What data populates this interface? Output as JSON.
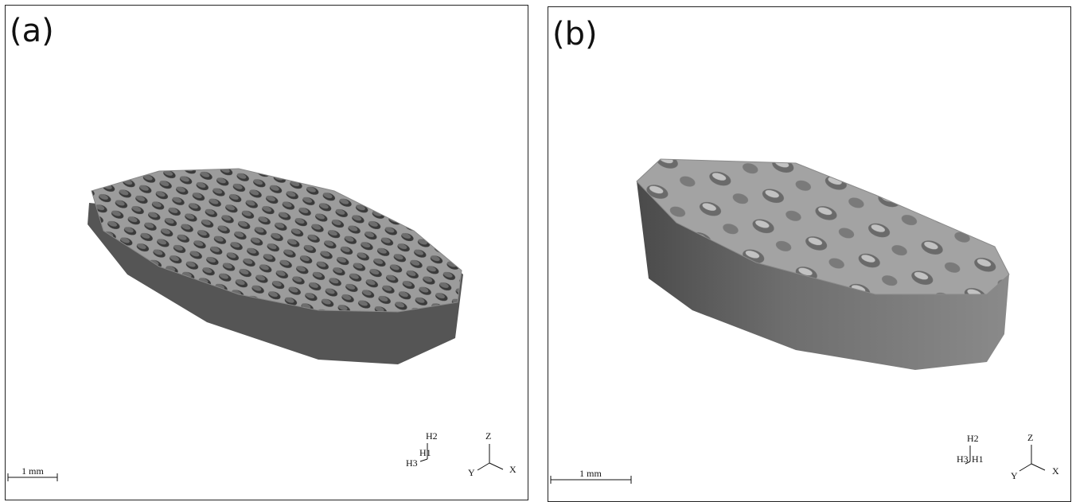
{
  "panels": [
    {
      "label": "(a)",
      "scale_bar": "1 mm",
      "triad": {
        "h1": "H1",
        "h2": "H2",
        "h3": "H3"
      },
      "axes": {
        "x": "X",
        "y": "Y",
        "z": "Z"
      }
    },
    {
      "label": "(b)",
      "scale_bar": "1 mm",
      "triad": {
        "h1": "H1",
        "h2": "H2",
        "h3": "H3"
      },
      "axes": {
        "x": "X",
        "y": "Y",
        "z": "Z"
      }
    }
  ]
}
